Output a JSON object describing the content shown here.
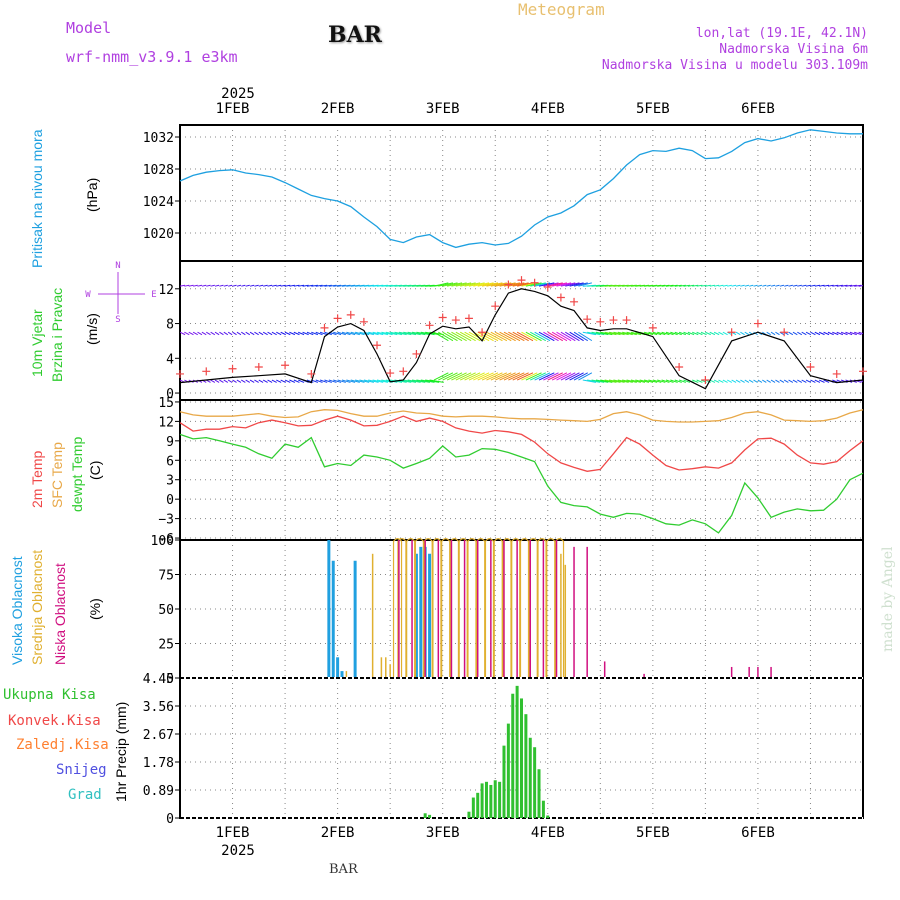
{
  "header": {
    "model_label": "Model",
    "model_name": "wrf-nmm_v3.9.1 e3km",
    "station": "BAR",
    "meteogram_title": "Meteogram",
    "lonlat": "lon,lat (19.1E, 42.1N)",
    "elevation": "Nadmorska Visina 6m",
    "model_elevation": "Nadmorska Visina u modelu 303.109m"
  },
  "time_axis": {
    "year": "2025",
    "days": [
      "1FEB",
      "2FEB",
      "3FEB",
      "4FEB",
      "5FEB",
      "6FEB"
    ],
    "hour_range": [
      -12,
      144
    ]
  },
  "footer": {
    "station": "BAR",
    "credit": "made by Angel"
  },
  "colors": {
    "pressure": "#1ea0e0",
    "temp2m": "#f04848",
    "sfc_temp": "#e8a848",
    "dewpt": "#30cc30",
    "high_cloud": "#20a0e0",
    "mid_cloud": "#e0b030",
    "low_cloud": "#d01080",
    "precip": "#30c030",
    "purple": "#b040e0",
    "meteogram": "#e8c070"
  },
  "chart_data": [
    {
      "type": "line",
      "name": "pressure",
      "ylabel_main": "Pritisak na nivou mora",
      "ylabel_unit": "(hPa)",
      "ylim": [
        1016.5,
        1033.5
      ],
      "yticks": [
        1020,
        1024,
        1028,
        1032
      ],
      "series": [
        {
          "name": "MSLP",
          "x": [
            -12,
            -9,
            -6,
            -3,
            0,
            3,
            6,
            9,
            12,
            15,
            18,
            21,
            24,
            27,
            30,
            33,
            36,
            39,
            42,
            45,
            48,
            51,
            54,
            57,
            60,
            63,
            66,
            69,
            72,
            75,
            78,
            81,
            84,
            87,
            90,
            93,
            96,
            99,
            102,
            105,
            108,
            111,
            114,
            117,
            120,
            123,
            126,
            129,
            132,
            135,
            138,
            141,
            144
          ],
          "values": [
            1026.5,
            1027.2,
            1027.6,
            1027.8,
            1027.9,
            1027.5,
            1027.3,
            1027.0,
            1026.3,
            1025.5,
            1024.7,
            1024.3,
            1024.0,
            1023.3,
            1022.0,
            1020.8,
            1019.2,
            1018.8,
            1019.5,
            1019.8,
            1018.8,
            1018.2,
            1018.6,
            1018.8,
            1018.5,
            1018.7,
            1019.6,
            1021.0,
            1022.0,
            1022.5,
            1023.4,
            1024.8,
            1025.4,
            1026.8,
            1028.5,
            1029.8,
            1030.3,
            1030.2,
            1030.6,
            1030.3,
            1029.3,
            1029.4,
            1030.2,
            1031.3,
            1031.8,
            1031.5,
            1031.9,
            1032.5,
            1032.9,
            1032.7,
            1032.5,
            1032.4,
            1032.4
          ]
        }
      ]
    },
    {
      "type": "line",
      "name": "wind",
      "ylabel_main": "10m Vjetar",
      "ylabel_sub": "Brzina i Pravac",
      "ylabel_unit": "(m/s)",
      "compass": [
        "N",
        "S",
        "W",
        "E"
      ],
      "ylim": [
        -0.8,
        15.2
      ],
      "yticks": [
        0,
        4,
        8,
        12
      ],
      "series": [
        {
          "name": "speed",
          "x": [
            -12,
            -6,
            0,
            6,
            12,
            18,
            21,
            24,
            27,
            30,
            33,
            36,
            39,
            42,
            45,
            48,
            51,
            54,
            57,
            60,
            63,
            66,
            69,
            72,
            75,
            78,
            81,
            84,
            87,
            90,
            96,
            102,
            108,
            114,
            120,
            126,
            132,
            138,
            144
          ],
          "values": [
            1.2,
            1.5,
            1.8,
            2.0,
            2.2,
            1.2,
            6.5,
            7.6,
            8.0,
            7.2,
            4.5,
            1.3,
            1.5,
            3.5,
            6.8,
            7.7,
            7.4,
            7.6,
            6.0,
            9.0,
            11.5,
            12.0,
            11.7,
            11.2,
            10.0,
            9.5,
            7.5,
            7.2,
            7.4,
            7.4,
            6.5,
            2.0,
            0.5,
            6.0,
            7.0,
            6.0,
            2.0,
            1.2,
            1.5
          ]
        }
      ]
    },
    {
      "type": "line",
      "name": "temperature",
      "ylabels": [
        "2m Temp",
        "SFC Temp",
        "dewpt Temp"
      ],
      "ylabel_unit": "(C)",
      "ylim": [
        -6.3,
        15.3
      ],
      "yticks": [
        -6,
        -3,
        0,
        3,
        6,
        9,
        12,
        15
      ],
      "series": [
        {
          "name": "2m Temp",
          "x": [
            -12,
            -9,
            -6,
            -3,
            0,
            3,
            6,
            9,
            12,
            15,
            18,
            21,
            24,
            27,
            30,
            33,
            36,
            39,
            42,
            45,
            48,
            51,
            54,
            57,
            60,
            63,
            66,
            69,
            72,
            75,
            78,
            81,
            84,
            87,
            90,
            93,
            96,
            99,
            102,
            105,
            108,
            111,
            114,
            117,
            120,
            123,
            126,
            129,
            132,
            135,
            138,
            141,
            144
          ],
          "values": [
            11.8,
            10.5,
            10.8,
            10.8,
            11.2,
            11.0,
            11.8,
            12.2,
            11.8,
            11.3,
            11.4,
            12.2,
            12.8,
            12.2,
            11.3,
            11.4,
            12.0,
            12.8,
            12.0,
            12.5,
            12.0,
            11.0,
            10.5,
            10.2,
            10.6,
            10.4,
            10.0,
            8.8,
            7.0,
            5.6,
            4.9,
            4.3,
            4.6,
            7.0,
            9.5,
            8.5,
            6.8,
            5.2,
            4.5,
            4.7,
            5.0,
            4.8,
            5.6,
            7.6,
            9.3,
            9.4,
            8.5,
            6.8,
            5.6,
            5.4,
            5.8,
            7.5,
            9.0
          ]
        },
        {
          "name": "SFC Temp",
          "x": [
            -12,
            -9,
            -6,
            -3,
            0,
            3,
            6,
            9,
            12,
            15,
            18,
            21,
            24,
            27,
            30,
            33,
            36,
            39,
            42,
            45,
            48,
            51,
            54,
            57,
            60,
            63,
            66,
            69,
            72,
            75,
            78,
            81,
            84,
            87,
            90,
            93,
            96,
            99,
            102,
            105,
            108,
            111,
            114,
            117,
            120,
            123,
            126,
            129,
            132,
            135,
            138,
            141,
            144
          ],
          "values": [
            13.5,
            13.0,
            12.8,
            12.8,
            12.8,
            13.0,
            13.2,
            12.8,
            12.6,
            12.7,
            13.5,
            13.8,
            13.7,
            13.2,
            12.8,
            12.8,
            13.3,
            13.6,
            13.3,
            13.2,
            12.8,
            12.7,
            12.8,
            12.8,
            12.7,
            12.5,
            12.4,
            12.4,
            12.3,
            12.2,
            12.1,
            12.0,
            12.3,
            13.2,
            13.5,
            13.0,
            12.2,
            12.0,
            11.9,
            11.9,
            12.0,
            12.1,
            12.6,
            13.3,
            13.5,
            13.0,
            12.2,
            12.1,
            12.0,
            12.1,
            12.5,
            13.3,
            13.8
          ]
        },
        {
          "name": "dewpt Temp",
          "x": [
            -12,
            -9,
            -6,
            -3,
            0,
            3,
            6,
            9,
            12,
            15,
            18,
            21,
            24,
            27,
            30,
            33,
            36,
            39,
            42,
            45,
            48,
            51,
            54,
            57,
            60,
            63,
            66,
            69,
            72,
            75,
            78,
            81,
            84,
            87,
            90,
            93,
            96,
            99,
            102,
            105,
            108,
            111,
            114,
            117,
            120,
            123,
            126,
            129,
            132,
            135,
            138,
            141,
            144
          ],
          "values": [
            10.0,
            9.3,
            9.5,
            9.0,
            8.5,
            8.0,
            7.0,
            6.3,
            8.5,
            8.0,
            9.5,
            5.0,
            5.5,
            5.2,
            6.8,
            6.5,
            6.0,
            4.8,
            5.5,
            6.3,
            8.2,
            6.5,
            6.8,
            7.8,
            7.7,
            7.2,
            6.5,
            5.8,
            2.0,
            -0.5,
            -1.0,
            -1.2,
            -2.3,
            -2.8,
            -2.2,
            -2.3,
            -3.0,
            -3.8,
            -4.0,
            -3.2,
            -3.8,
            -5.2,
            -2.5,
            2.5,
            0.2,
            -2.8,
            -2.0,
            -1.5,
            -1.8,
            -1.7,
            0.0,
            3.0,
            4.0
          ]
        }
      ]
    },
    {
      "type": "bar",
      "name": "cloud_cover",
      "ylabels": [
        "Visoka Oblacnost",
        "Srednja Oblacnost",
        "Niska Oblacnost"
      ],
      "ylabel_unit": "(%)",
      "ylim": [
        0,
        100
      ],
      "yticks": [
        0,
        25,
        50,
        75,
        100
      ],
      "series": [
        {
          "name": "high",
          "x": [
            22,
            23,
            24,
            25,
            28,
            42,
            43,
            44,
            45
          ],
          "values": [
            100,
            85,
            15,
            5,
            85,
            90,
            95,
            95,
            90
          ]
        },
        {
          "name": "mid",
          "x": [
            26,
            32,
            34,
            35,
            36,
            37,
            38,
            40,
            42,
            44,
            46,
            48,
            50,
            52,
            54,
            56,
            58,
            60,
            62,
            64,
            66,
            68,
            70,
            72,
            74,
            75,
            76
          ],
          "values": [
            5,
            90,
            15,
            15,
            10,
            100,
            100,
            100,
            100,
            100,
            100,
            100,
            100,
            100,
            100,
            100,
            100,
            100,
            100,
            100,
            100,
            100,
            100,
            100,
            100,
            90,
            82
          ]
        },
        {
          "name": "low",
          "x": [
            38,
            41,
            44,
            47,
            50,
            53,
            56,
            59,
            62,
            65,
            68,
            71,
            74,
            78,
            81,
            85,
            94,
            114,
            118,
            120,
            123
          ],
          "values": [
            100,
            100,
            100,
            100,
            100,
            100,
            100,
            100,
            100,
            100,
            100,
            100,
            100,
            95,
            95,
            12,
            3,
            8,
            8,
            8,
            8
          ]
        }
      ]
    },
    {
      "type": "bar",
      "name": "precipitation",
      "ylabels": [
        "Ukupna Kisa",
        "Konvek.Kisa",
        "Zaledj.Kisa",
        "Snijeg",
        "Grad"
      ],
      "ylabel_unit": "1hr Precip (mm)",
      "ylim": [
        0,
        4.45
      ],
      "yticks": [
        0,
        0.89,
        1.78,
        2.67,
        3.56,
        4.45
      ],
      "series": [
        {
          "name": "Ukupna Kisa",
          "x": [
            44,
            45,
            54,
            55,
            56,
            57,
            58,
            59,
            60,
            61,
            62,
            63,
            64,
            65,
            66,
            67,
            68,
            69,
            70,
            71,
            72
          ],
          "values": [
            0.15,
            0.1,
            0.2,
            0.65,
            0.8,
            1.1,
            1.15,
            1.05,
            1.2,
            1.15,
            2.3,
            3.0,
            3.95,
            4.2,
            3.8,
            3.3,
            2.55,
            2.25,
            1.55,
            0.55,
            0.08
          ]
        }
      ]
    }
  ]
}
